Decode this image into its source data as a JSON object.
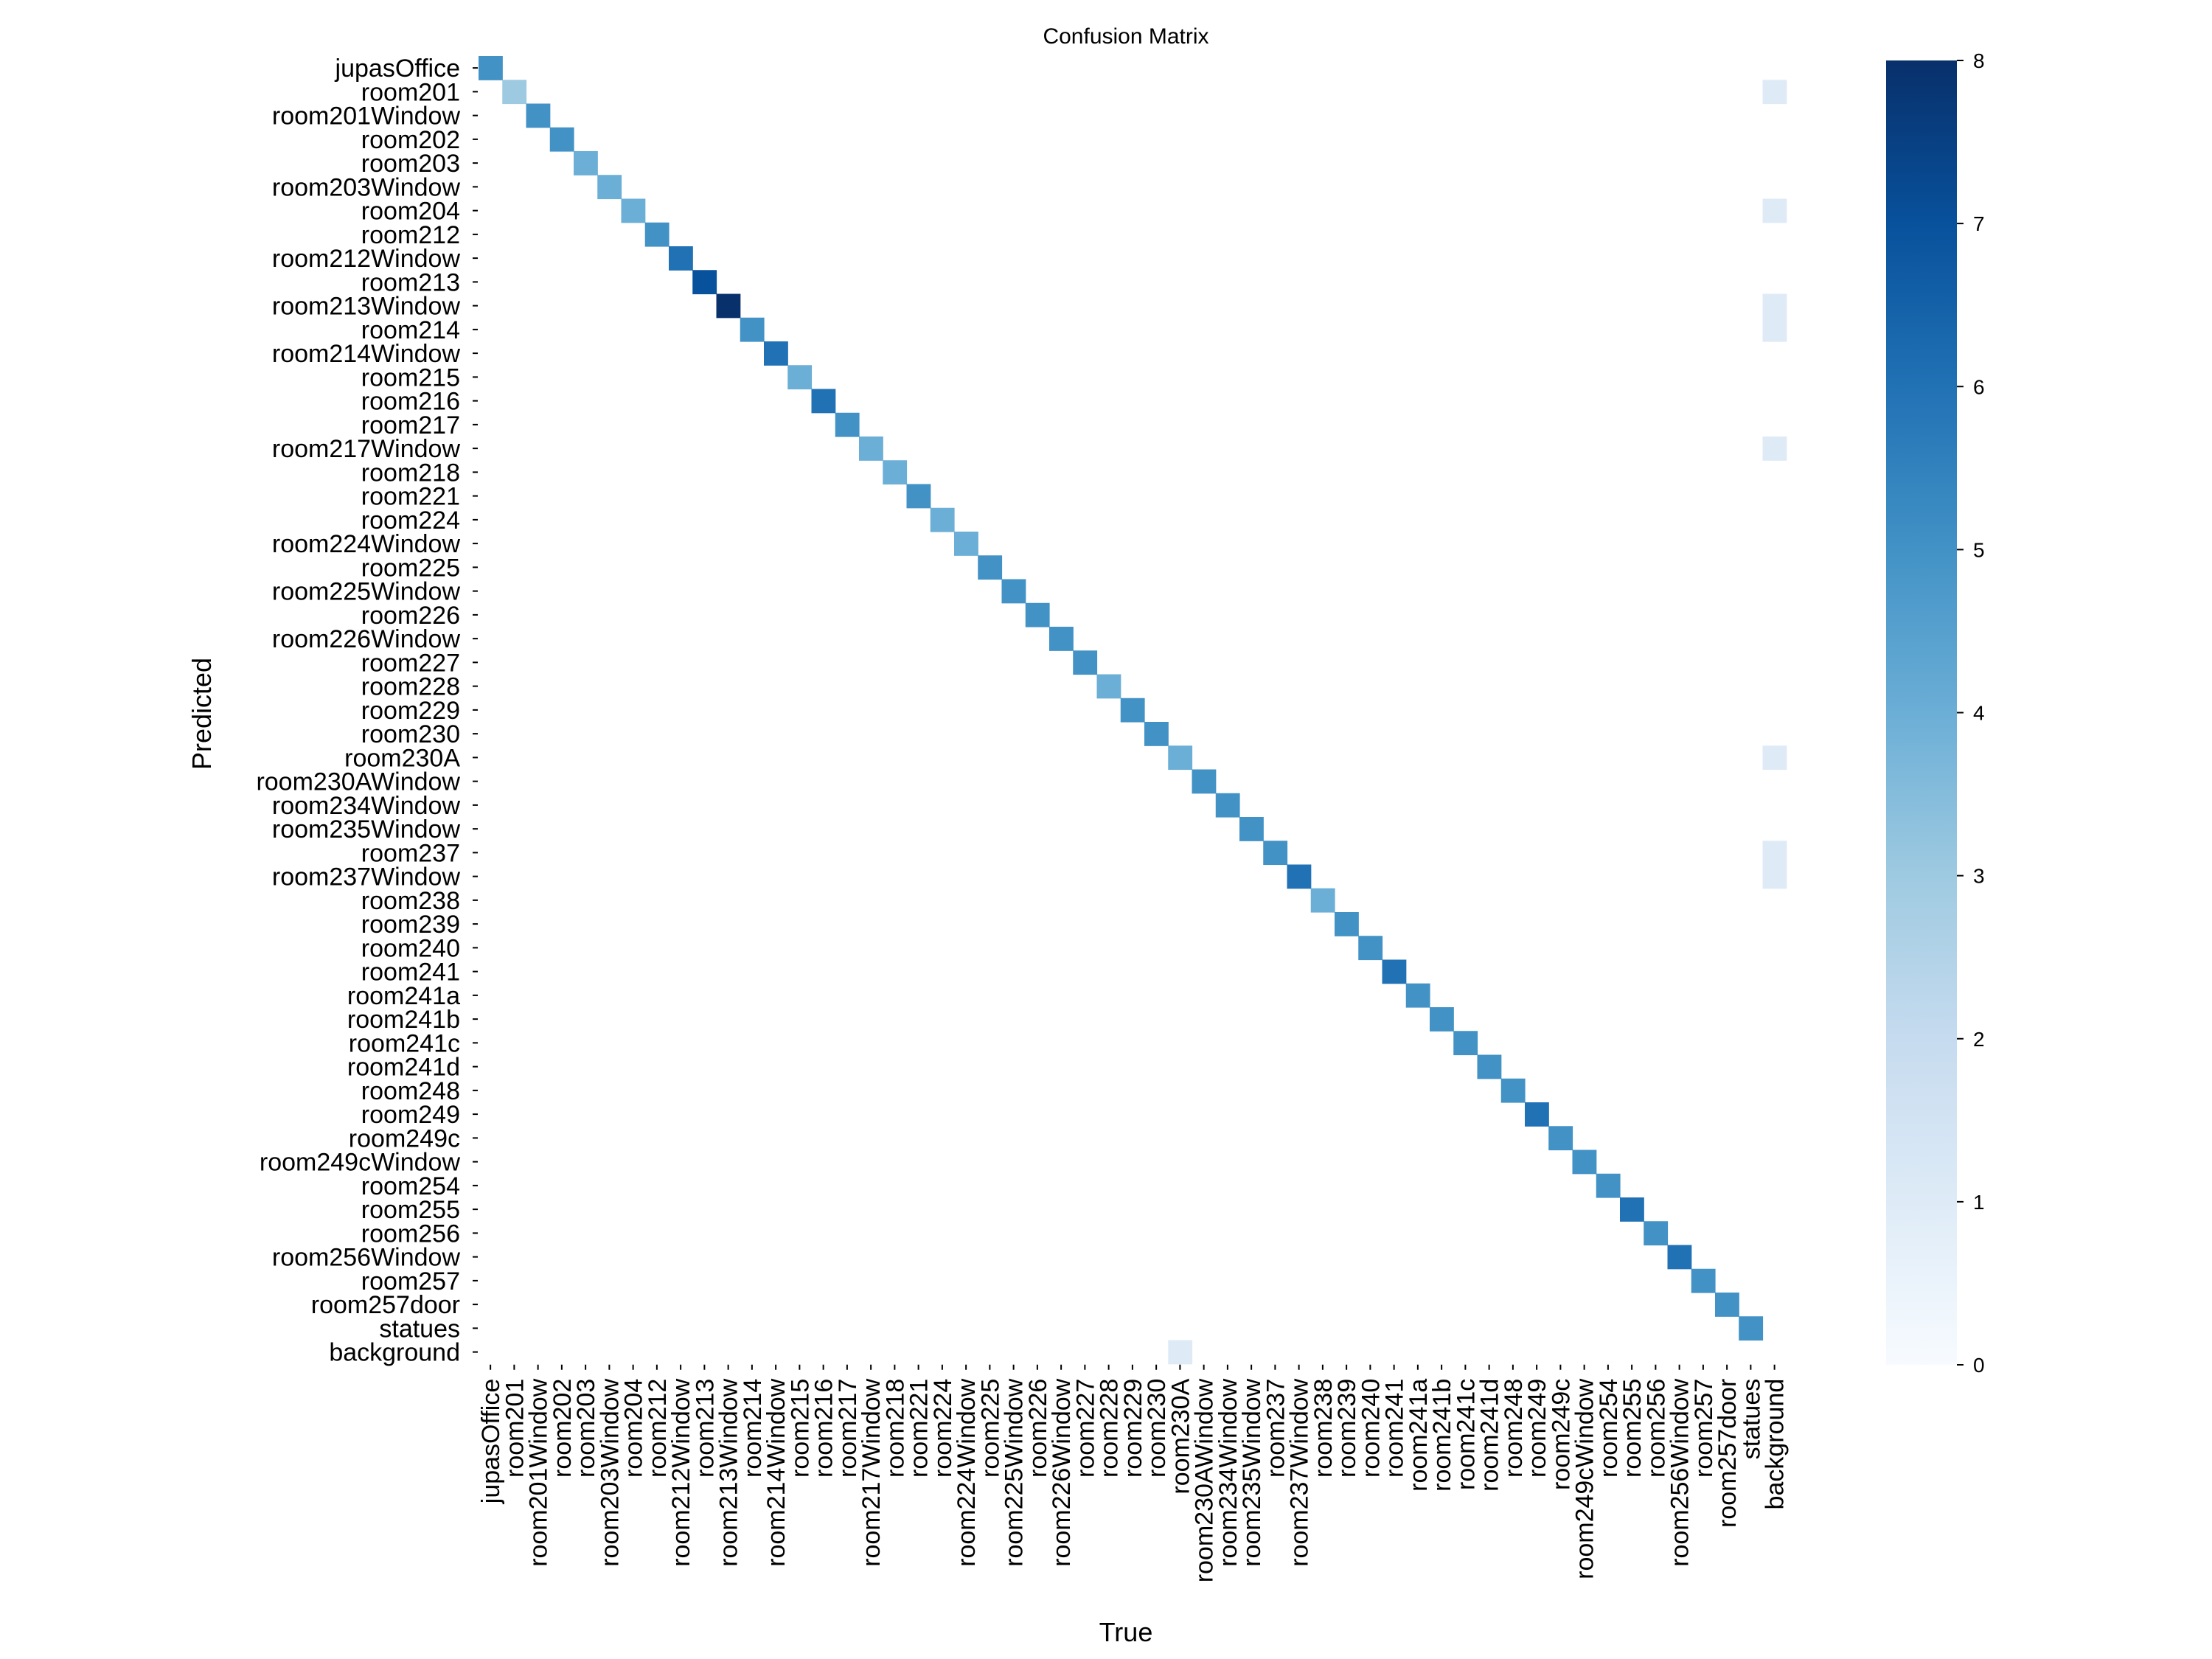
{
  "chart_data": {
    "type": "heatmap",
    "title": "Confusion Matrix",
    "xlabel": "True",
    "ylabel": "Predicted",
    "labels": [
      "jupasOffice",
      "room201",
      "room201Window",
      "room202",
      "room203",
      "room203Window",
      "room204",
      "room212",
      "room212Window",
      "room213",
      "room213Window",
      "room214",
      "room214Window",
      "room215",
      "room216",
      "room217",
      "room217Window",
      "room218",
      "room221",
      "room224",
      "room224Window",
      "room225",
      "room225Window",
      "room226",
      "room226Window",
      "room227",
      "room228",
      "room229",
      "room230",
      "room230A",
      "room230AWindow",
      "room234Window",
      "room235Window",
      "room237",
      "room237Window",
      "room238",
      "room239",
      "room240",
      "room241",
      "room241a",
      "room241b",
      "room241c",
      "room241d",
      "room248",
      "room249",
      "room249c",
      "room249cWindow",
      "room254",
      "room255",
      "room256",
      "room256Window",
      "room257",
      "room257door",
      "statues",
      "background"
    ],
    "diagonal": [
      5,
      3,
      5,
      5,
      4,
      4,
      4,
      5,
      6,
      7,
      8,
      5,
      6,
      4,
      6,
      5,
      4,
      4,
      5,
      4,
      4,
      5,
      5,
      5,
      5,
      5,
      4,
      5,
      5,
      4,
      5,
      5,
      5,
      5,
      6,
      4,
      5,
      5,
      6,
      5,
      5,
      5,
      5,
      5,
      6,
      5,
      5,
      5,
      6,
      5,
      6,
      5,
      5,
      5,
      0
    ],
    "off_diagonal": [
      {
        "true": "background",
        "predicted": "room201",
        "value": 1
      },
      {
        "true": "background",
        "predicted": "room204",
        "value": 1
      },
      {
        "true": "background",
        "predicted": "room213Window",
        "value": 1
      },
      {
        "true": "background",
        "predicted": "room214",
        "value": 1
      },
      {
        "true": "background",
        "predicted": "room217Window",
        "value": 1
      },
      {
        "true": "background",
        "predicted": "room230A",
        "value": 1
      },
      {
        "true": "background",
        "predicted": "room237",
        "value": 1
      },
      {
        "true": "background",
        "predicted": "room237Window",
        "value": 1
      },
      {
        "true": "room230A",
        "predicted": "background",
        "value": 1
      }
    ],
    "colormap": "Blues",
    "vmin": 0,
    "vmax": 8,
    "colorbar_ticks": [
      "0",
      "1",
      "2",
      "3",
      "4",
      "5",
      "6",
      "7",
      "8"
    ],
    "colors": {
      "low": "#f7fbff",
      "high": "#08306b"
    }
  }
}
